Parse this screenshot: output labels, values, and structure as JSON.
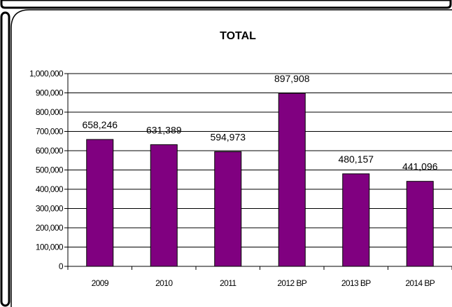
{
  "chart_data": {
    "type": "bar",
    "title": "TOTAL",
    "xlabel": "",
    "ylabel": "",
    "categories": [
      "2009",
      "2010",
      "2011",
      "2012 BP",
      "2013 BP",
      "2014 BP"
    ],
    "values": [
      658246,
      631389,
      594973,
      897908,
      480157,
      441096
    ],
    "data_labels": [
      "658,246",
      "631,389",
      "594,973",
      "897,908",
      "480,157",
      "441,096"
    ],
    "ylim": [
      0,
      1000000
    ],
    "yticks": [
      0,
      100000,
      200000,
      300000,
      400000,
      500000,
      600000,
      700000,
      800000,
      900000,
      1000000
    ],
    "ytick_labels": [
      "0",
      "100,000",
      "200,000",
      "300,000",
      "400,000",
      "500,000",
      "600,000",
      "700,000",
      "800,000",
      "900,000",
      "1,000,000"
    ],
    "grid": true,
    "legend": "none",
    "bar_color": "#800080"
  }
}
